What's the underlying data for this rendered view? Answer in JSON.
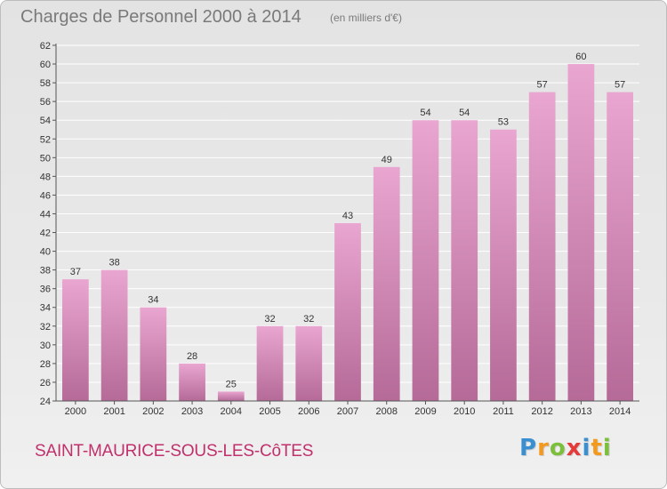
{
  "header": {
    "title": "Charges de Personnel 2000 à 2014",
    "unit": "(en milliers d'€)"
  },
  "footer": {
    "commune": "SAINT-MAURICE-SOUS-LES-CôTES",
    "logo": {
      "letters": [
        "P",
        "r",
        "o",
        "x",
        "i",
        "t",
        "i"
      ],
      "colors": [
        "#3a8fd1",
        "#f39a1d",
        "#7cbf3a",
        "#e53a3a",
        "#3a8fd1",
        "#f39a1d",
        "#7cbf3a"
      ]
    }
  },
  "colors": {
    "bar_light": "#e9a6d0",
    "bar_dark": "#b56a98",
    "grid": "#ffffff",
    "axis": "#555555",
    "text": "#333333"
  },
  "chart_data": {
    "type": "bar",
    "title": "Charges de Personnel 2000 à 2014",
    "subtitle": "(en milliers d'€)",
    "categories": [
      "2000",
      "2001",
      "2002",
      "2003",
      "2004",
      "2005",
      "2006",
      "2007",
      "2008",
      "2009",
      "2010",
      "2011",
      "2012",
      "2013",
      "2014"
    ],
    "values": [
      37,
      38,
      34,
      28,
      25,
      32,
      32,
      43,
      49,
      54,
      54,
      53,
      57,
      60,
      57
    ],
    "ylim": [
      24,
      62
    ],
    "yticks": [
      24,
      26,
      28,
      30,
      32,
      34,
      36,
      38,
      40,
      42,
      44,
      46,
      48,
      50,
      52,
      54,
      56,
      58,
      60,
      62
    ],
    "grid": true,
    "xlabel": "",
    "ylabel": ""
  }
}
